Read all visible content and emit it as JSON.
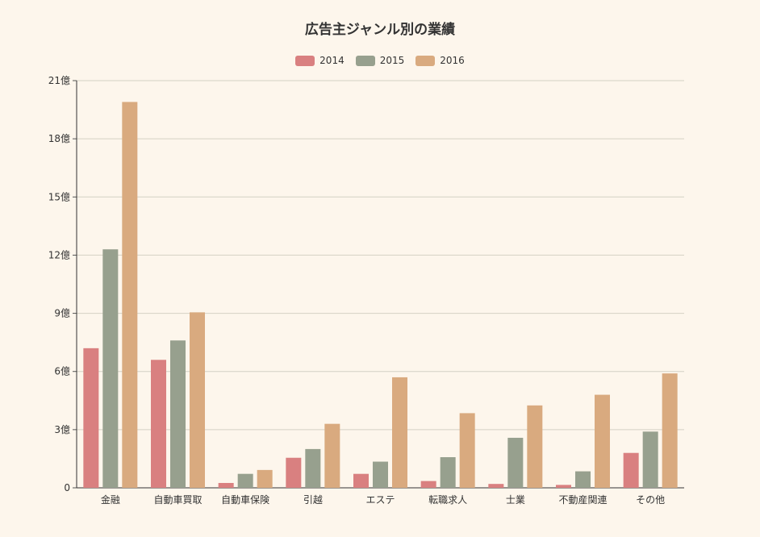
{
  "chart_data": {
    "type": "bar",
    "title": "広告主ジャンル別の業績",
    "categories": [
      "金融",
      "自動車買取",
      "自動車保険",
      "引越",
      "エステ",
      "転職求人",
      "士業",
      "不動産関連",
      "その他"
    ],
    "series": [
      {
        "name": "2014",
        "color": "#d98080",
        "values": [
          7.2,
          6.6,
          0.25,
          1.55,
          0.72,
          0.35,
          0.2,
          0.15,
          1.8
        ]
      },
      {
        "name": "2015",
        "color": "#97a08e",
        "values": [
          12.3,
          7.6,
          0.72,
          2.0,
          1.35,
          1.58,
          2.58,
          0.85,
          2.9
        ]
      },
      {
        "name": "2016",
        "color": "#d9aa7f",
        "values": [
          19.9,
          9.05,
          0.92,
          3.3,
          5.7,
          3.85,
          4.25,
          4.8,
          5.9
        ]
      }
    ],
    "yticks": [
      {
        "value": 0,
        "label": "0"
      },
      {
        "value": 3,
        "label": "3億"
      },
      {
        "value": 6,
        "label": "6億"
      },
      {
        "value": 9,
        "label": "9億"
      },
      {
        "value": 12,
        "label": "12億"
      },
      {
        "value": 15,
        "label": "15億"
      },
      {
        "value": 18,
        "label": "18億"
      },
      {
        "value": 21,
        "label": "21億"
      }
    ],
    "ylim": [
      0,
      21
    ],
    "xlabel": "",
    "ylabel": "",
    "grid": true,
    "legend_position": "top-center"
  }
}
